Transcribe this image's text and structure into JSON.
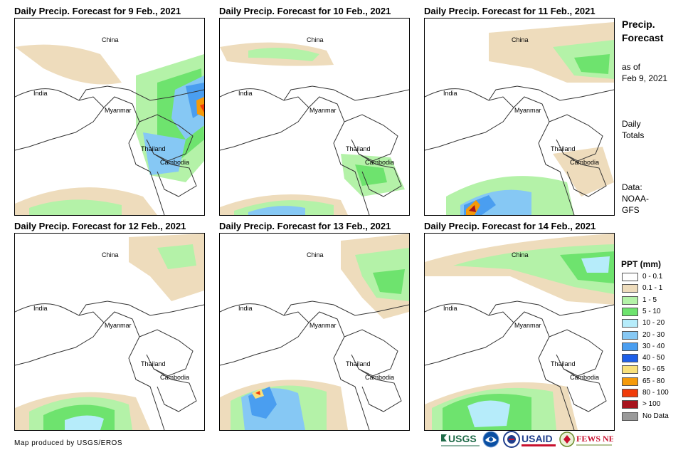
{
  "panels": [
    {
      "title": "Daily Precip. Forecast for 9 Feb., 2021",
      "labels": {
        "china": "China",
        "india": "India",
        "myanmar": "Myanmar",
        "thailand": "Thailand",
        "cambodia": "Cambodia"
      }
    },
    {
      "title": "Daily Precip. Forecast for 10 Feb., 2021",
      "labels": {
        "china": "China",
        "india": "India",
        "myanmar": "Myanmar",
        "thailand": "Thailand",
        "cambodia": "Cambodia"
      }
    },
    {
      "title": "Daily Precip. Forecast for 11 Feb., 2021",
      "labels": {
        "china": "China",
        "india": "India",
        "myanmar": "Myanmar",
        "thailand": "Thailand",
        "cambodia": "Cambodia"
      }
    },
    {
      "title": "Daily Precip. Forecast for 12 Feb., 2021",
      "labels": {
        "china": "China",
        "india": "India",
        "myanmar": "Myanmar",
        "thailand": "Thailand",
        "cambodia": "Cambodia"
      }
    },
    {
      "title": "Daily Precip. Forecast for 13 Feb., 2021",
      "labels": {
        "china": "China",
        "india": "India",
        "myanmar": "Myanmar",
        "thailand": "Thailand",
        "cambodia": "Cambodia"
      }
    },
    {
      "title": "Daily Precip. Forecast for 14 Feb., 2021",
      "labels": {
        "china": "China",
        "india": "India",
        "myanmar": "Myanmar",
        "thailand": "Thailand",
        "cambodia": "Cambodia"
      }
    }
  ],
  "side": {
    "title_line1": "Precip.",
    "title_line2": "Forecast",
    "asof_line1": "as of",
    "asof_line2": "Feb 9, 2021",
    "daily_line1": "Daily",
    "daily_line2": "Totals",
    "data_line1": "Data:",
    "data_line2": "NOAA-",
    "data_line3": "GFS"
  },
  "legend": {
    "title": "PPT (mm)",
    "items": [
      {
        "label": "0 - 0.1",
        "color": "#ffffff"
      },
      {
        "label": "0.1 - 1",
        "color": "#eedcbc"
      },
      {
        "label": "1 - 5",
        "color": "#b4f2a8"
      },
      {
        "label": "5 - 10",
        "color": "#6ee36e"
      },
      {
        "label": "10 - 20",
        "color": "#b6ecfa"
      },
      {
        "label": "20 - 30",
        "color": "#86c8f4"
      },
      {
        "label": "30 - 40",
        "color": "#4a9ef0"
      },
      {
        "label": "40 - 50",
        "color": "#1e5fe8"
      },
      {
        "label": "50 - 65",
        "color": "#f8e07a"
      },
      {
        "label": "65 - 80",
        "color": "#f59a0a"
      },
      {
        "label": "80 - 100",
        "color": "#f03c0a"
      },
      {
        "label": "> 100",
        "color": "#a8141e"
      },
      {
        "label": "No Data",
        "color": "#9a9a9a"
      }
    ]
  },
  "credit": "Map produced by USGS/EROS",
  "logos": {
    "usgs": "USGS",
    "usaid": "USAID",
    "fewsnet": "FEWS NET"
  }
}
